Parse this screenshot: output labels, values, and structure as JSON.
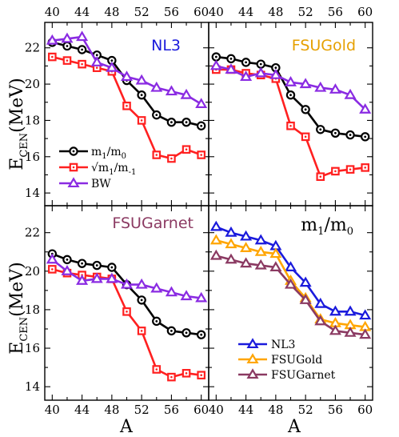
{
  "figure": {
    "top_axis_label": "",
    "bottom_axis_label": "A",
    "left_axis_label_main": "E",
    "left_axis_label_sub": "CEN",
    "left_axis_label_unit": "(MeV)"
  },
  "chart_data": [
    {
      "type": "line",
      "panel": "top-left",
      "title": "NL3",
      "title_color": "#1a1adc",
      "x": [
        40,
        42,
        44,
        46,
        48,
        50,
        52,
        54,
        56,
        58,
        60
      ],
      "xlim": [
        39,
        61
      ],
      "ylim": [
        13.3,
        23.4
      ],
      "xticks": [
        40,
        44,
        48,
        52,
        56,
        60
      ],
      "yticks": [
        14,
        16,
        18,
        20,
        22
      ],
      "legend": "bottom-left",
      "series": [
        {
          "name": "m1/m0",
          "color": "#000000",
          "marker": "circle",
          "values": [
            22.3,
            22.1,
            21.9,
            21.6,
            21.3,
            20.2,
            19.4,
            18.3,
            17.9,
            17.9,
            17.7
          ]
        },
        {
          "name": "√m1/m-1",
          "color": "#ff2020",
          "marker": "square",
          "values": [
            21.5,
            21.3,
            21.1,
            20.9,
            20.7,
            18.8,
            18.0,
            16.1,
            15.9,
            16.4,
            16.1
          ]
        },
        {
          "name": "BW",
          "color": "#8a2be2",
          "marker": "triangle",
          "values": [
            22.4,
            22.5,
            22.6,
            21.2,
            20.9,
            20.4,
            20.2,
            19.8,
            19.6,
            19.4,
            18.9
          ]
        }
      ]
    },
    {
      "type": "line",
      "panel": "top-right",
      "title": "FSUGold",
      "title_color": "#e6a000",
      "x": [
        40,
        42,
        44,
        46,
        48,
        50,
        52,
        54,
        56,
        58,
        60
      ],
      "xlim": [
        39,
        61
      ],
      "ylim": [
        13.3,
        23.4
      ],
      "xticks": [
        40,
        44,
        48,
        52,
        56,
        60
      ],
      "yticks": [
        14,
        16,
        18,
        20,
        22
      ],
      "series": [
        {
          "name": "m1/m0",
          "color": "#000000",
          "marker": "circle",
          "values": [
            21.5,
            21.4,
            21.2,
            21.1,
            20.9,
            19.4,
            18.6,
            17.5,
            17.3,
            17.2,
            17.1
          ]
        },
        {
          "name": "√m1/m-1",
          "color": "#ff2020",
          "marker": "square",
          "values": [
            20.8,
            20.8,
            20.6,
            20.5,
            20.3,
            17.7,
            17.1,
            14.9,
            15.2,
            15.3,
            15.4
          ]
        },
        {
          "name": "BW",
          "color": "#8a2be2",
          "marker": "triangle",
          "values": [
            21.0,
            20.8,
            20.4,
            20.6,
            20.5,
            20.1,
            20.0,
            19.8,
            19.7,
            19.4,
            18.6
          ]
        }
      ]
    },
    {
      "type": "line",
      "panel": "bottom-left",
      "title": "FSUGarnet",
      "title_color": "#8b3a62",
      "x": [
        40,
        42,
        44,
        46,
        48,
        50,
        52,
        54,
        56,
        58,
        60
      ],
      "xlim": [
        39,
        61
      ],
      "ylim": [
        13.3,
        23.4
      ],
      "xticks": [
        40,
        44,
        48,
        52,
        56,
        60
      ],
      "yticks": [
        14,
        16,
        18,
        20,
        22
      ],
      "series": [
        {
          "name": "m1/m0",
          "color": "#000000",
          "marker": "circle",
          "values": [
            20.9,
            20.6,
            20.4,
            20.3,
            20.2,
            19.3,
            18.5,
            17.4,
            16.9,
            16.8,
            16.7
          ]
        },
        {
          "name": "√m1/m-1",
          "color": "#ff2020",
          "marker": "square",
          "values": [
            20.1,
            19.9,
            19.8,
            19.7,
            19.6,
            17.9,
            16.9,
            14.9,
            14.5,
            14.7,
            14.6
          ]
        },
        {
          "name": "BW",
          "color": "#8a2be2",
          "marker": "triangle",
          "values": [
            20.6,
            20.0,
            19.5,
            19.6,
            19.6,
            19.3,
            19.3,
            19.1,
            18.9,
            18.7,
            18.6
          ]
        }
      ]
    },
    {
      "type": "line",
      "panel": "bottom-right",
      "title_main": "m",
      "title_sub1": "1",
      "title_sep": "/m",
      "title_sub2": "0",
      "title_color": "#000000",
      "x": [
        40,
        42,
        44,
        46,
        48,
        50,
        52,
        54,
        56,
        58,
        60
      ],
      "xlim": [
        39,
        61
      ],
      "ylim": [
        13.3,
        23.4
      ],
      "xticks": [
        40,
        44,
        48,
        52,
        56,
        60
      ],
      "yticks": [
        14,
        16,
        18,
        20,
        22
      ],
      "legend": "bottom-right",
      "series": [
        {
          "name": "NL3",
          "color": "#1a1adc",
          "marker": "triangle",
          "values": [
            22.3,
            22.0,
            21.8,
            21.6,
            21.3,
            20.2,
            19.4,
            18.3,
            17.9,
            17.9,
            17.7
          ]
        },
        {
          "name": "FSUGold",
          "color": "#ffa500",
          "marker": "triangle",
          "values": [
            21.6,
            21.4,
            21.2,
            21.0,
            20.9,
            19.5,
            18.6,
            17.5,
            17.3,
            17.2,
            17.1
          ]
        },
        {
          "name": "FSUGarnet",
          "color": "#8b3a62",
          "marker": "triangle",
          "values": [
            20.8,
            20.6,
            20.4,
            20.3,
            20.2,
            19.3,
            18.5,
            17.4,
            16.9,
            16.8,
            16.7
          ]
        }
      ]
    }
  ],
  "legends": {
    "top_left": {
      "entries": [
        {
          "main": "m",
          "sub1": "1",
          "sep": "/m",
          "sub2": "0",
          "color": "#000000",
          "marker": "circle"
        },
        {
          "main": "√m",
          "sub1": "1",
          "sep": "/m",
          "sub2": "-1",
          "color": "#ff2020",
          "marker": "square"
        },
        {
          "main": "BW",
          "sub1": "",
          "sep": "",
          "sub2": "",
          "color": "#8a2be2",
          "marker": "triangle"
        }
      ]
    },
    "bottom_right": {
      "entries": [
        {
          "label": "NL3",
          "color": "#1a1adc"
        },
        {
          "label": "FSUGold",
          "color": "#ffa500"
        },
        {
          "label": "FSUGarnet",
          "color": "#8b3a62"
        }
      ]
    }
  }
}
